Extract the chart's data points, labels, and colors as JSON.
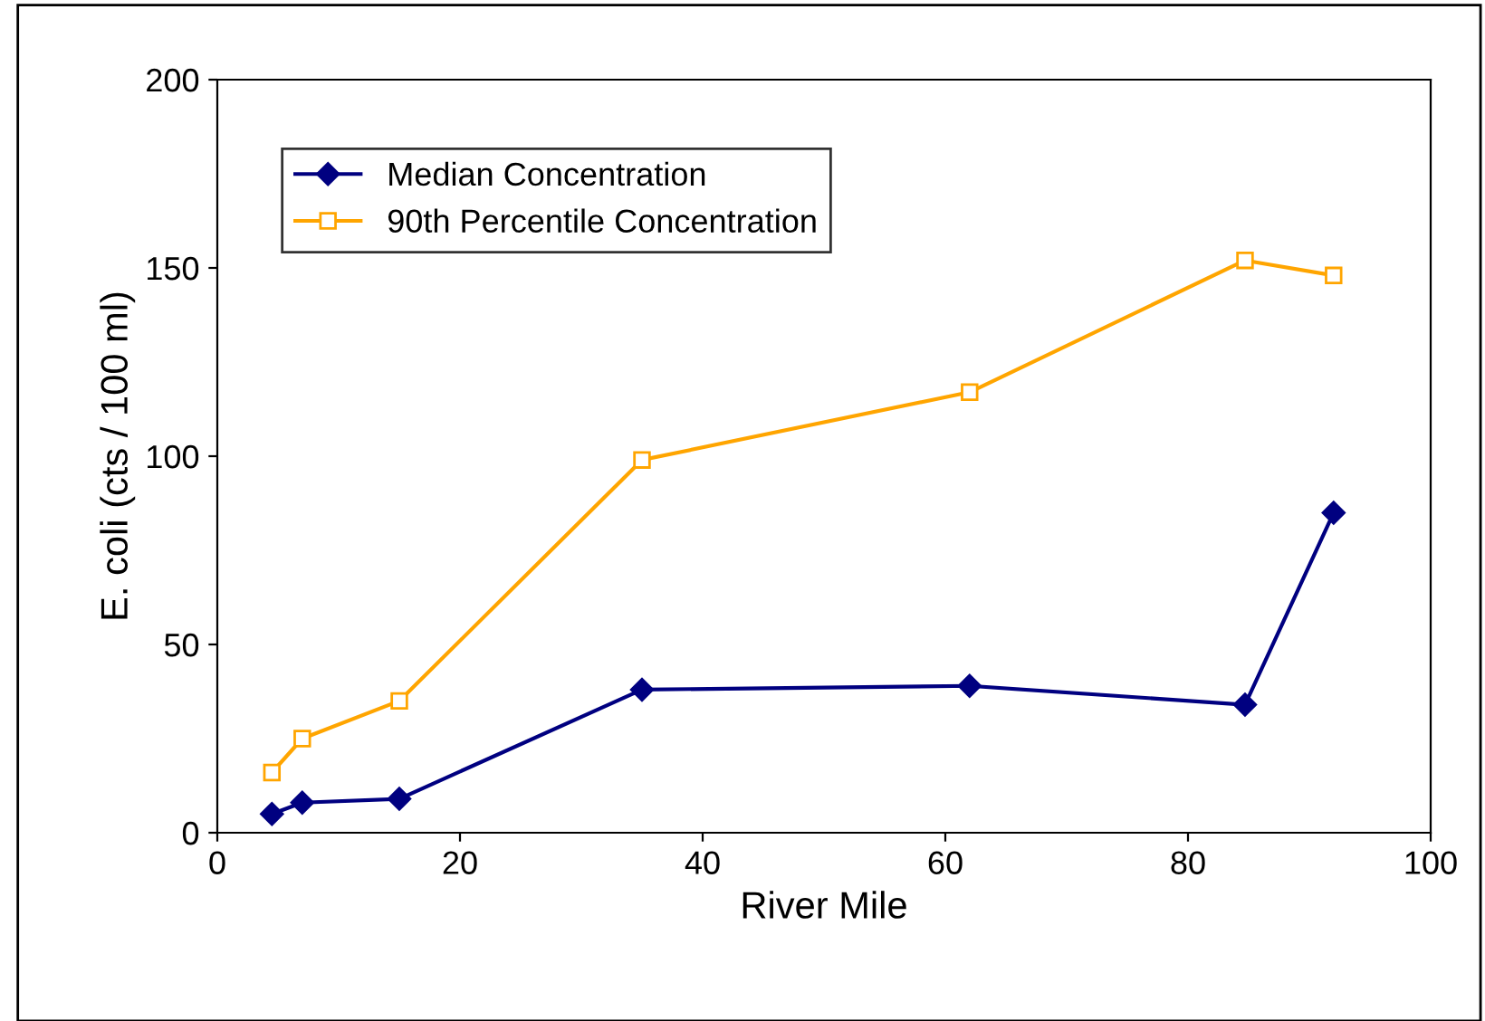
{
  "chart_data": {
    "type": "line",
    "xlabel": "River Mile",
    "ylabel": "E. coli (cts / 100 ml)",
    "x": [
      4.5,
      7,
      15,
      35,
      62,
      84.7,
      92
    ],
    "series": [
      {
        "name": "Median Concentration",
        "color": "#000080",
        "marker": "diamond",
        "values": [
          5,
          8,
          9,
          38,
          39,
          34,
          85
        ]
      },
      {
        "name": "90th Percentile Concentration",
        "color": "#ffa500",
        "marker": "square",
        "values": [
          16,
          25,
          35,
          99,
          117,
          152,
          148
        ]
      }
    ],
    "xlim": [
      0,
      100
    ],
    "xticks": [
      0,
      20,
      40,
      60,
      80,
      100
    ],
    "ylim": [
      0,
      200
    ],
    "yticks": [
      0,
      50,
      100,
      150,
      200
    ],
    "grid": false,
    "legend": "top left"
  }
}
